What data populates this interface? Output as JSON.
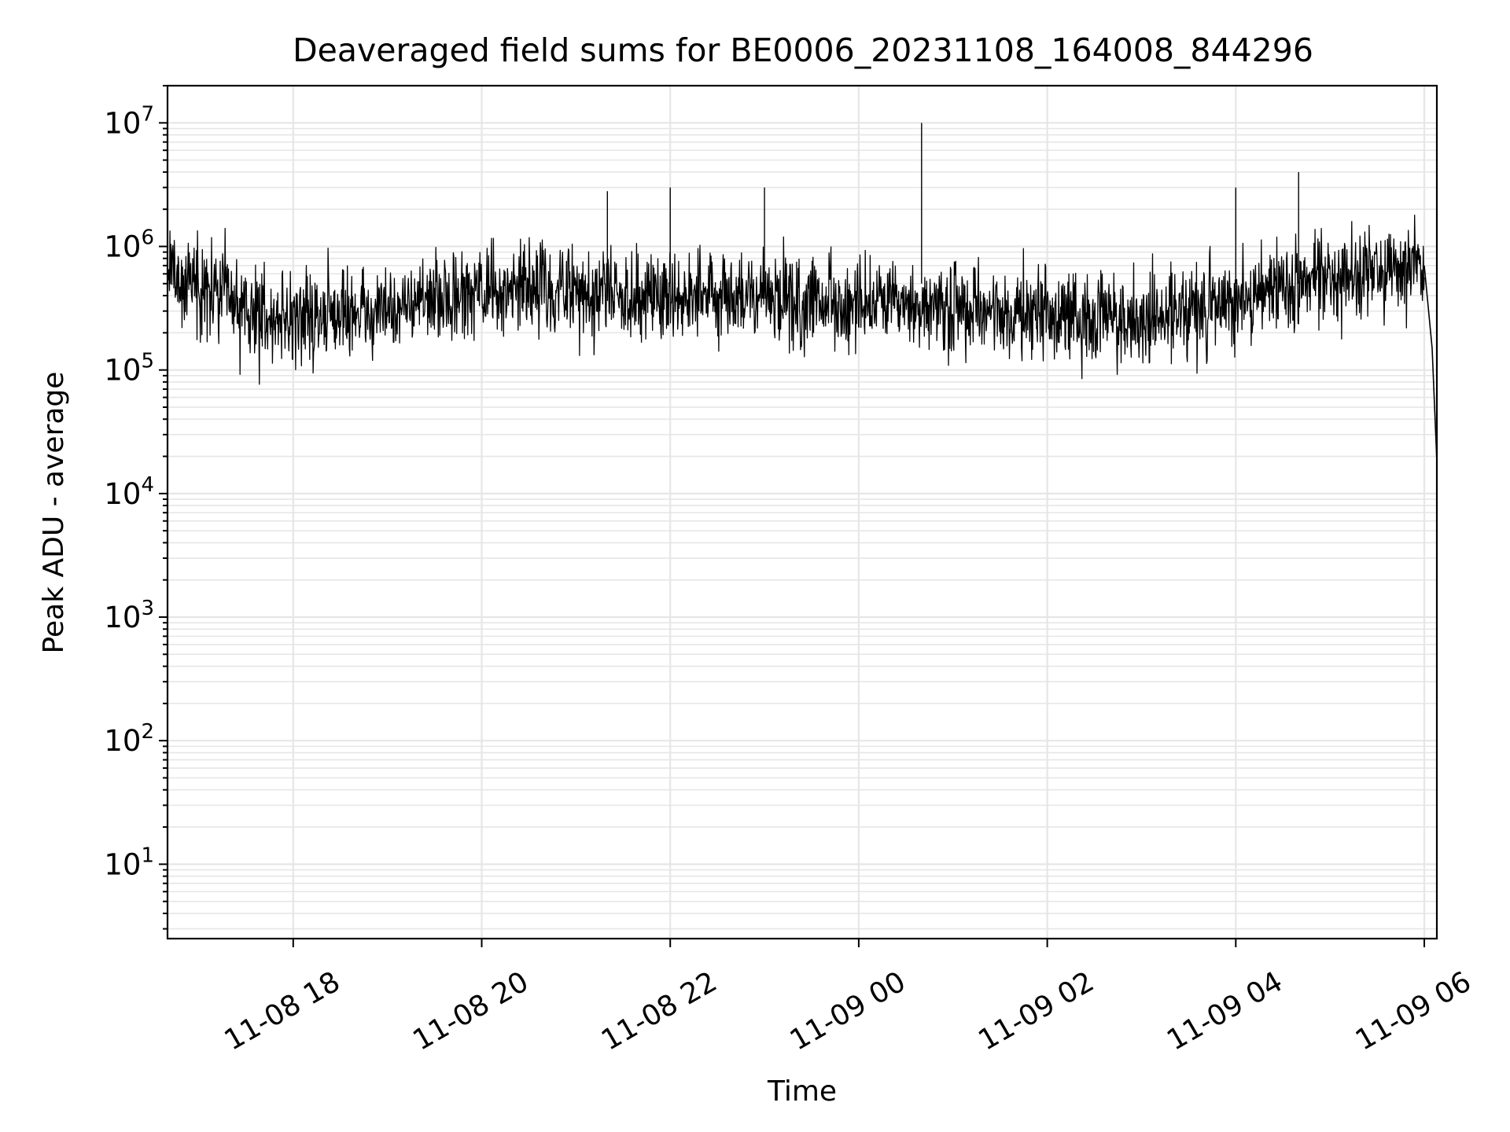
{
  "chart_data": {
    "type": "line",
    "title": "Deaveraged field sums for BE0006_20231108_164008_844296",
    "xlabel": "Time",
    "ylabel": "Peak ADU - average",
    "yscale": "log",
    "ylim": [
      2.5,
      20000000
    ],
    "xlim": [
      "11-08 16:40",
      "11-09 06:08"
    ],
    "grid": true,
    "line_color": "#000000",
    "x_tick_labels": [
      "11-08 18",
      "11-08 20",
      "11-08 22",
      "11-09 00",
      "11-09 02",
      "11-09 04",
      "11-09 06"
    ],
    "y_tick_exponents": [
      "1",
      "2",
      "3",
      "4",
      "5",
      "6",
      "7"
    ],
    "y_tick_base": "10",
    "series": [
      {
        "x": [
          "11-08 16:40",
          "11-08 17:00",
          "11-08 17:20",
          "11-08 17:40",
          "11-08 18:00",
          "11-08 18:20",
          "11-08 18:40",
          "11-08 19:00",
          "11-08 19:20",
          "11-08 19:40",
          "11-08 20:00",
          "11-08 20:20",
          "11-08 20:40",
          "11-08 21:00",
          "11-08 21:20",
          "11-08 21:40",
          "11-08 22:00",
          "11-08 22:20",
          "11-08 22:40",
          "11-08 23:00",
          "11-08 23:20",
          "11-08 23:40",
          "11-09 00:00",
          "11-09 00:20",
          "11-09 00:40",
          "11-09 01:00",
          "11-09 01:20",
          "11-09 01:40",
          "11-09 02:00",
          "11-09 02:20",
          "11-09 02:40",
          "11-09 03:00",
          "11-09 03:20",
          "11-09 03:40",
          "11-09 04:00",
          "11-09 04:20",
          "11-09 04:40",
          "11-09 05:00",
          "11-09 05:20",
          "11-09 05:40",
          "11-09 06:00",
          "11-09 06:05",
          "11-09 06:08"
        ],
        "y": [
          600000,
          500000,
          350000,
          280000,
          260000,
          270000,
          290000,
          320000,
          350000,
          380000,
          420000,
          440000,
          450000,
          440000,
          430000,
          420000,
          420000,
          410000,
          400000,
          380000,
          360000,
          340000,
          330000,
          320000,
          310000,
          300000,
          290000,
          280000,
          280000,
          270000,
          270000,
          260000,
          280000,
          320000,
          380000,
          440000,
          500000,
          550000,
          600000,
          650000,
          700000,
          150000,
          18000
        ]
      }
    ]
  }
}
